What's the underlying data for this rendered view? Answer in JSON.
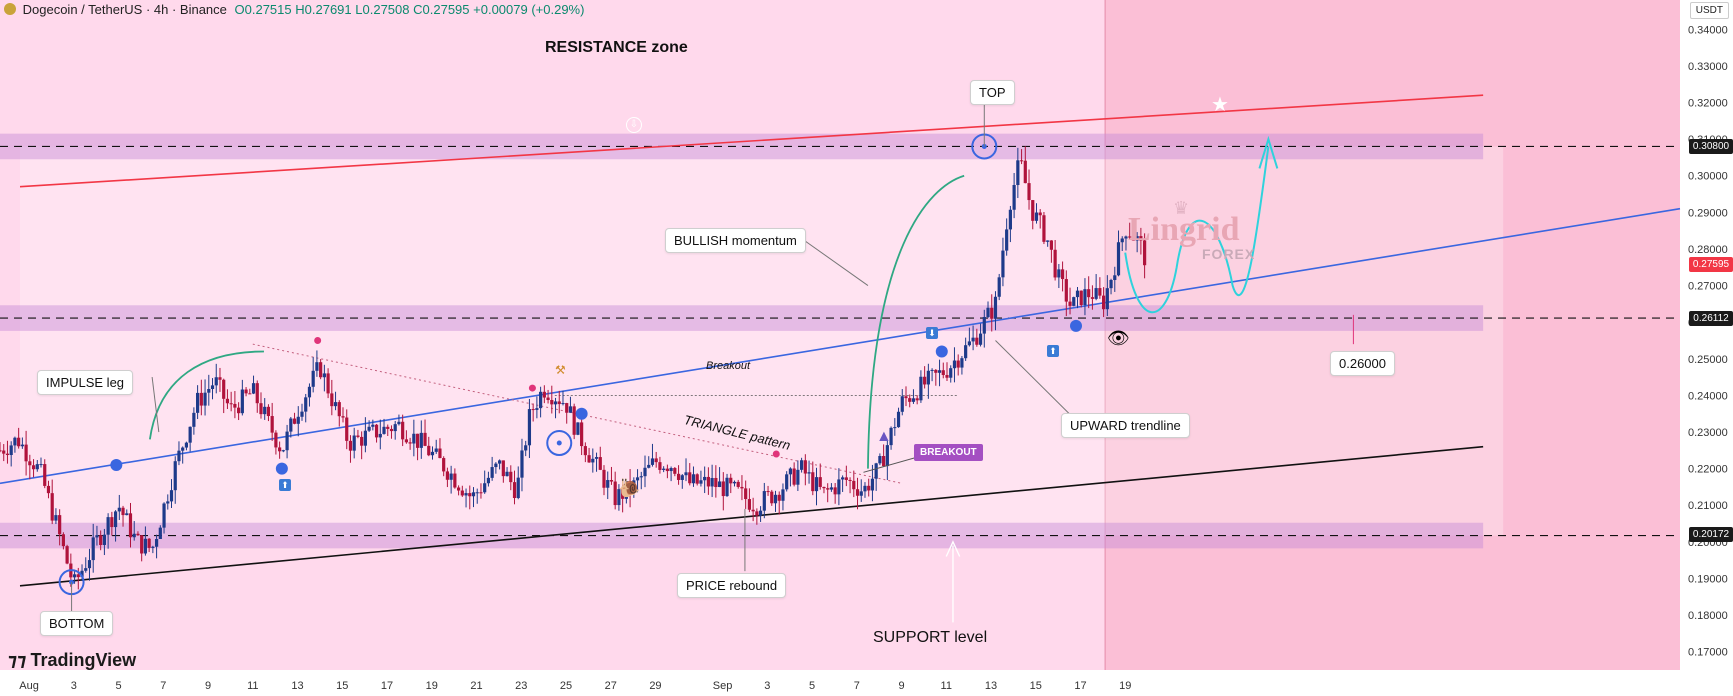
{
  "header": {
    "symbol": "Dogecoin / TetherUS · 4h · Binance",
    "open": "O0.27515",
    "high": "H0.27691",
    "low": "L0.27508",
    "close": "C0.27595",
    "change": "+0.00079 (+0.29%)"
  },
  "branding": {
    "logo": "TradingView",
    "watermark_line1": "Lingrid",
    "watermark_line2": "FOREX"
  },
  "chart_data": {
    "type": "candlestick",
    "quote": "USDT",
    "ylim": [
      0.165,
      0.348
    ],
    "y_ticks": [
      0.17,
      0.18,
      0.19,
      0.2,
      0.21,
      0.22,
      0.23,
      0.24,
      0.25,
      0.26,
      0.27,
      0.28,
      0.29,
      0.3,
      0.31,
      0.32,
      0.33,
      0.34
    ],
    "y_tick_labels": [
      "0.17000",
      "0.18000",
      "0.19000",
      "0.20000",
      "0.21000",
      "0.22000",
      "0.23000",
      "0.24000",
      "0.25000",
      "0.26000",
      "0.27000",
      "0.28000",
      "0.29000",
      "0.30000",
      "0.31000",
      "0.32000",
      "0.33000",
      "0.34000"
    ],
    "x_tick_labels": [
      "Aug",
      "3",
      "5",
      "7",
      "9",
      "11",
      "13",
      "15",
      "17",
      "19",
      "21",
      "23",
      "25",
      "27",
      "29",
      "Sep",
      "3",
      "5",
      "7",
      "9",
      "11",
      "13",
      "15",
      "17",
      "19"
    ],
    "x_tick_days": [
      1,
      3,
      5,
      7,
      9,
      11,
      13,
      15,
      17,
      19,
      21,
      23,
      25,
      27,
      29,
      32,
      34,
      36,
      38,
      40,
      42,
      44,
      46,
      48,
      50
    ],
    "x_range_days": [
      -0.3,
      74.8
    ],
    "current_day": 49.1,
    "price_path": [
      [
        -0.3,
        0.225
      ],
      [
        0.5,
        0.228
      ],
      [
        1.5,
        0.219
      ],
      [
        2.2,
        0.205
      ],
      [
        3.0,
        0.188
      ],
      [
        4.0,
        0.2
      ],
      [
        5.0,
        0.21
      ],
      [
        5.8,
        0.2
      ],
      [
        6.5,
        0.198
      ],
      [
        7.5,
        0.22
      ],
      [
        8.5,
        0.238
      ],
      [
        9.3,
        0.244
      ],
      [
        10.0,
        0.236
      ],
      [
        11.0,
        0.241
      ],
      [
        12.3,
        0.225
      ],
      [
        13.0,
        0.236
      ],
      [
        14.0,
        0.248
      ],
      [
        14.6,
        0.238
      ],
      [
        15.3,
        0.227
      ],
      [
        16.5,
        0.23
      ],
      [
        17.5,
        0.232
      ],
      [
        18.5,
        0.227
      ],
      [
        19.5,
        0.221
      ],
      [
        20.8,
        0.212
      ],
      [
        22.0,
        0.221
      ],
      [
        22.8,
        0.214
      ],
      [
        23.4,
        0.235
      ],
      [
        24.0,
        0.242
      ],
      [
        25.0,
        0.238
      ],
      [
        25.5,
        0.23
      ],
      [
        26.5,
        0.219
      ],
      [
        27.2,
        0.212
      ],
      [
        28.0,
        0.215
      ],
      [
        29.0,
        0.222
      ],
      [
        29.8,
        0.221
      ],
      [
        30.5,
        0.216
      ],
      [
        31.5,
        0.216
      ],
      [
        32.5,
        0.214
      ],
      [
        33.5,
        0.21
      ],
      [
        34.5,
        0.214
      ],
      [
        35.5,
        0.22
      ],
      [
        36.5,
        0.213
      ],
      [
        37.5,
        0.217
      ],
      [
        38.3,
        0.214
      ],
      [
        39.0,
        0.22
      ],
      [
        40.0,
        0.238
      ],
      [
        41.0,
        0.243
      ],
      [
        42.0,
        0.247
      ],
      [
        43.2,
        0.255
      ],
      [
        44.2,
        0.265
      ],
      [
        44.8,
        0.292
      ],
      [
        45.3,
        0.304
      ],
      [
        45.8,
        0.291
      ],
      [
        46.5,
        0.283
      ],
      [
        47.0,
        0.272
      ],
      [
        47.6,
        0.264
      ],
      [
        48.0,
        0.267
      ],
      [
        48.5,
        0.268
      ],
      [
        49.0,
        0.265
      ],
      [
        49.5,
        0.275
      ],
      [
        50.0,
        0.286
      ],
      [
        50.6,
        0.282
      ],
      [
        51.0,
        0.2759
      ]
    ],
    "levels": [
      {
        "price": 0.308,
        "label": "0.30800"
      },
      {
        "price": 0.26112,
        "label": "0.26112"
      },
      {
        "price": 0.20172,
        "label": "0.20172"
      }
    ],
    "target_label": "0.26000",
    "current_price": {
      "price": 0.27595,
      "label": "0.27595"
    },
    "annotations": [
      "RESISTANCE zone",
      "TOP",
      "BULLISH momentum",
      "IMPULSE leg",
      "Breakout",
      "TRIANGLE pattern",
      "BREAKOUT",
      "UPWARD trendline",
      "PRICE rebound",
      "BOTTOM",
      "SUPPORT level"
    ]
  },
  "colors": {
    "bg_pink": "#ffd9ec",
    "forecast_bg": "#fbbfd6",
    "zone": "#c58ad8",
    "bull_candle": "#1e3a8a",
    "bear_candle": "#b0133c",
    "resistance_line": "#f23645",
    "trend_line": "#3a66e0",
    "support_line": "#111111",
    "path_green": "#2fa883",
    "path_cyan": "#2fd2dc"
  },
  "icons": [
    "dogecoin-icon",
    "crown-icon",
    "star-icon",
    "eye-icon",
    "snail-icon",
    "rocket-icon",
    "hammer-icon",
    "down-circle-icon"
  ]
}
